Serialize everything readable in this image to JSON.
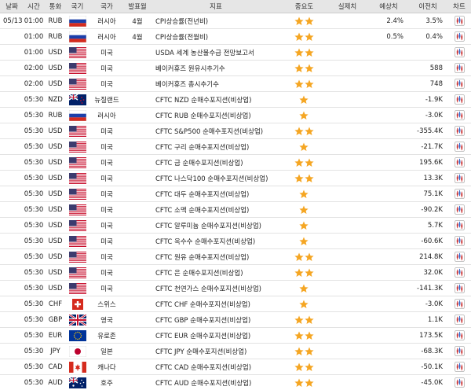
{
  "table": {
    "header": [
      "날짜",
      "시간",
      "통화",
      "국기",
      "국가",
      "발표월",
      "지표",
      "중요도",
      "실제치",
      "예상치",
      "이전치",
      "차트"
    ],
    "rows": [
      {
        "date": "05/13",
        "time": "01:00",
        "currency": "RUB",
        "country": "러시아",
        "month": "4월",
        "indicator": "CPI상승률(전년비)",
        "importance": 2,
        "forecast": "2.4%",
        "previous": "3.5%"
      },
      {
        "time": "01:00",
        "currency": "RUB",
        "country": "러시아",
        "month": "4월",
        "indicator": "CPI상승률(전월비)",
        "importance": 2,
        "forecast": "0.5%",
        "previous": "0.4%"
      },
      {
        "time": "01:00",
        "currency": "USD",
        "country": "미국",
        "indicator": "USDA 세계 농산물수급 전망보고서",
        "importance": 2
      },
      {
        "time": "02:00",
        "currency": "USD",
        "country": "미국",
        "indicator": "베이커휴즈 원유시추기수",
        "importance": 2,
        "previous": "588"
      },
      {
        "time": "02:00",
        "currency": "USD",
        "country": "미국",
        "indicator": "베이커휴즈 총시추기수",
        "importance": 2,
        "previous": "748"
      },
      {
        "time": "05:30",
        "currency": "NZD",
        "country": "뉴질랜드",
        "indicator": "CFTC NZD 순매수포지션(비상업)",
        "importance": 1,
        "previous": "-1.9K"
      },
      {
        "time": "05:30",
        "currency": "RUB",
        "country": "러시아",
        "indicator": "CFTC RUB 순매수포지션(비상업)",
        "importance": 1,
        "previous": "-3.0K"
      },
      {
        "time": "05:30",
        "currency": "USD",
        "country": "미국",
        "indicator": "CFTC S&P500 순매수포지션(비상업)",
        "importance": 2,
        "previous": "-355.4K"
      },
      {
        "time": "05:30",
        "currency": "USD",
        "country": "미국",
        "indicator": "CFTC 구리 순매수포지션(비상업)",
        "importance": 1,
        "previous": "-21.7K"
      },
      {
        "time": "05:30",
        "currency": "USD",
        "country": "미국",
        "indicator": "CFTC 금 순매수포지션(비상업)",
        "importance": 2,
        "previous": "195.6K"
      },
      {
        "time": "05:30",
        "currency": "USD",
        "country": "미국",
        "indicator": "CFTC 나스닥100 순매수포지션(비상업)",
        "importance": 2,
        "previous": "13.3K"
      },
      {
        "time": "05:30",
        "currency": "USD",
        "country": "미국",
        "indicator": "CFTC 대두 순매수포지션(비상업)",
        "importance": 1,
        "previous": "75.1K"
      },
      {
        "time": "05:30",
        "currency": "USD",
        "country": "미국",
        "indicator": "CFTC 소맥 순매수포지션(비상업)",
        "importance": 1,
        "previous": "-90.2K"
      },
      {
        "time": "05:30",
        "currency": "USD",
        "country": "미국",
        "indicator": "CFTC 알루미늄 순매수포지션(비상업)",
        "importance": 1,
        "previous": "5.7K"
      },
      {
        "time": "05:30",
        "currency": "USD",
        "country": "미국",
        "indicator": "CFTC 옥수수 순매수포지션(비상업)",
        "importance": 1,
        "previous": "-60.6K"
      },
      {
        "time": "05:30",
        "currency": "USD",
        "country": "미국",
        "indicator": "CFTC 원유 순매수포지션(비상업)",
        "importance": 2,
        "previous": "214.8K"
      },
      {
        "time": "05:30",
        "currency": "USD",
        "country": "미국",
        "indicator": "CFTC 은 순매수포지션(비상업)",
        "importance": 2,
        "previous": "32.0K"
      },
      {
        "time": "05:30",
        "currency": "USD",
        "country": "미국",
        "indicator": "CFTC 천연가스 순매수포지션(비상업)",
        "importance": 1,
        "previous": "-141.3K"
      },
      {
        "time": "05:30",
        "currency": "CHF",
        "country": "스위스",
        "indicator": "CFTC CHF 순매수포지션(비상업)",
        "importance": 1,
        "previous": "-3.0K"
      },
      {
        "time": "05:30",
        "currency": "GBP",
        "country": "영국",
        "indicator": "CFTC GBP 순매수포지션(비상업)",
        "importance": 2,
        "previous": "1.1K"
      },
      {
        "time": "05:30",
        "currency": "EUR",
        "country": "유로존",
        "indicator": "CFTC EUR 순매수포지션(비상업)",
        "importance": 2,
        "previous": "173.5K"
      },
      {
        "time": "05:30",
        "currency": "JPY",
        "country": "일본",
        "indicator": "CFTC JPY 순매수포지션(비상업)",
        "importance": 2,
        "previous": "-68.3K"
      },
      {
        "time": "05:30",
        "currency": "CAD",
        "country": "캐나다",
        "indicator": "CFTC CAD 순매수포지션(비상업)",
        "importance": 2,
        "previous": "-50.1K"
      },
      {
        "time": "05:30",
        "currency": "AUD",
        "country": "호주",
        "indicator": "CFTC AUD 순매수포지션(비상업)",
        "importance": 2,
        "previous": "-45.0K"
      }
    ]
  }
}
